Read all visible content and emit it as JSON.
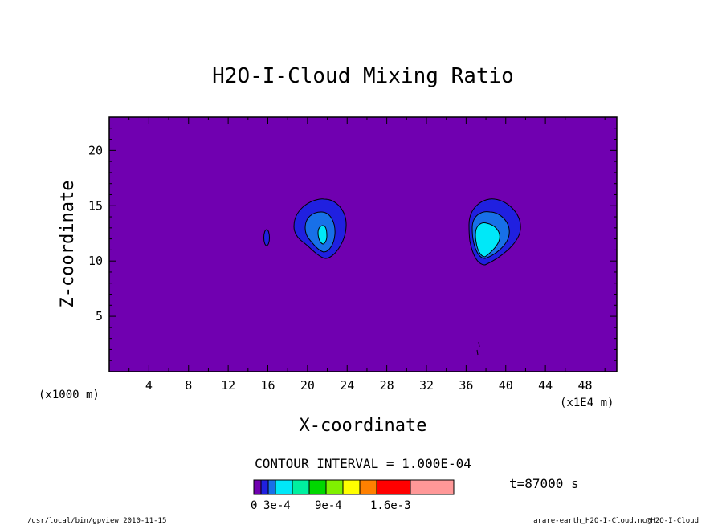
{
  "chart_data": {
    "type": "heatmap",
    "title": "H2O-I-Cloud Mixing Ratio",
    "xlabel": "X-coordinate",
    "ylabel": "Z-coordinate",
    "x_unit_label": "(x1E4 m)",
    "z_unit_label": "(x1000 m)",
    "xlim": [
      0,
      51.2
    ],
    "ylim": [
      0,
      23
    ],
    "x_ticks": [
      "4",
      "8",
      "12",
      "16",
      "20",
      "24",
      "28",
      "32",
      "36",
      "40",
      "44",
      "48"
    ],
    "y_ticks": [
      "5",
      "10",
      "15",
      "20"
    ],
    "contour_interval_text": "CONTOUR INTERVAL = 1.000E-04",
    "time_text": "t=87000 s",
    "colorbar": {
      "colors": [
        "#7000b0",
        "#2020e0",
        "#1870e8",
        "#00e8f8",
        "#00f0a0",
        "#00d800",
        "#80f000",
        "#ffff00",
        "#ff8000",
        "#ff0000",
        "#ff9898"
      ],
      "labels": [
        "0",
        "3e-4",
        "9e-4",
        "1.6e-3"
      ]
    },
    "background_color": "#7000b0",
    "cloud_cells": [
      {
        "name": "small cell",
        "x_center": 16.0,
        "z_center": 12.0,
        "max_level": 1
      },
      {
        "name": "middle cell",
        "x_center": 21.5,
        "z_center": 12.8,
        "max_level": 3
      },
      {
        "name": "right cell",
        "x_center": 37.8,
        "z_center": 12.5,
        "max_level": 3
      }
    ]
  },
  "footer": {
    "left": "/usr/local/bin/gpview  2010-11-15",
    "right": "arare-earth_H2O-I-Cloud.nc@H2O-I-Cloud"
  }
}
